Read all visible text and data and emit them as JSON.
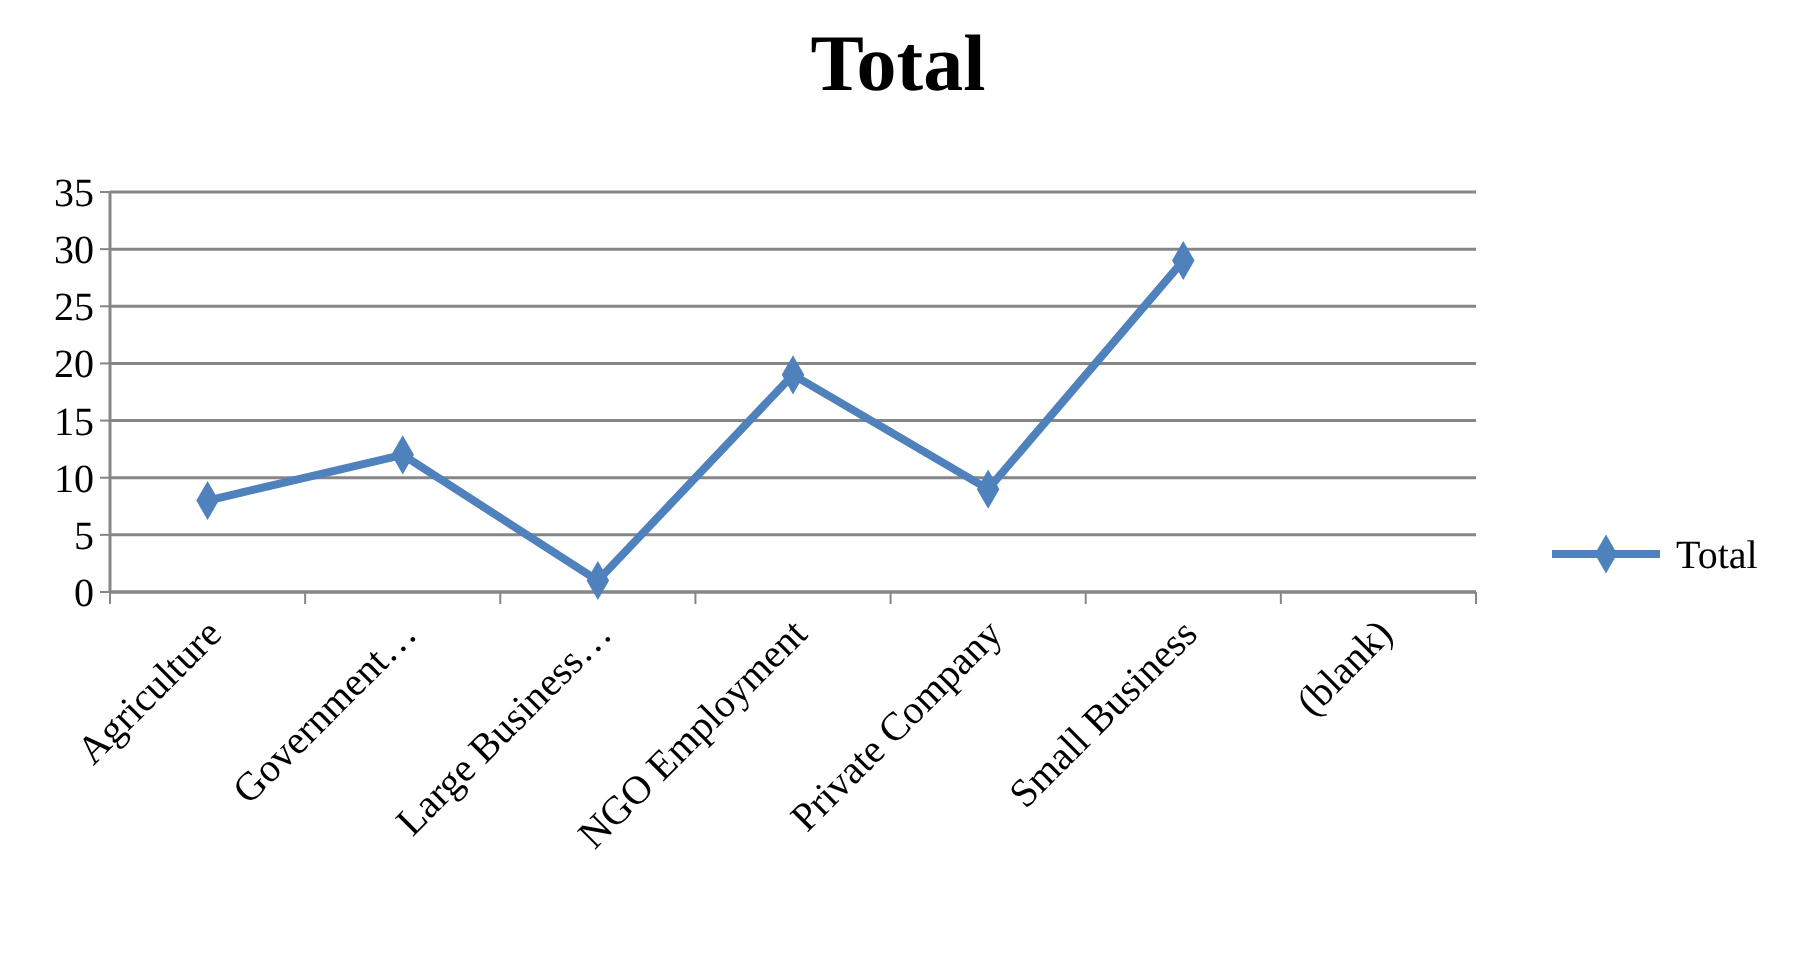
{
  "chart_data": {
    "type": "line",
    "title": "Total",
    "categories": [
      "Agriculture",
      "Government…",
      "Large Business…",
      "NGO Employment",
      "Private Company",
      "Small Business",
      "(blank)"
    ],
    "series": [
      {
        "name": "Total",
        "color": "#4f81bd",
        "values": [
          8,
          12,
          1,
          19,
          9,
          29,
          null
        ]
      }
    ],
    "ylim": [
      0,
      35
    ],
    "yticks": [
      0,
      5,
      10,
      15,
      20,
      25,
      30,
      35
    ],
    "grid": "y",
    "legend": "right",
    "marker": "diamond",
    "line_style": "solid"
  }
}
